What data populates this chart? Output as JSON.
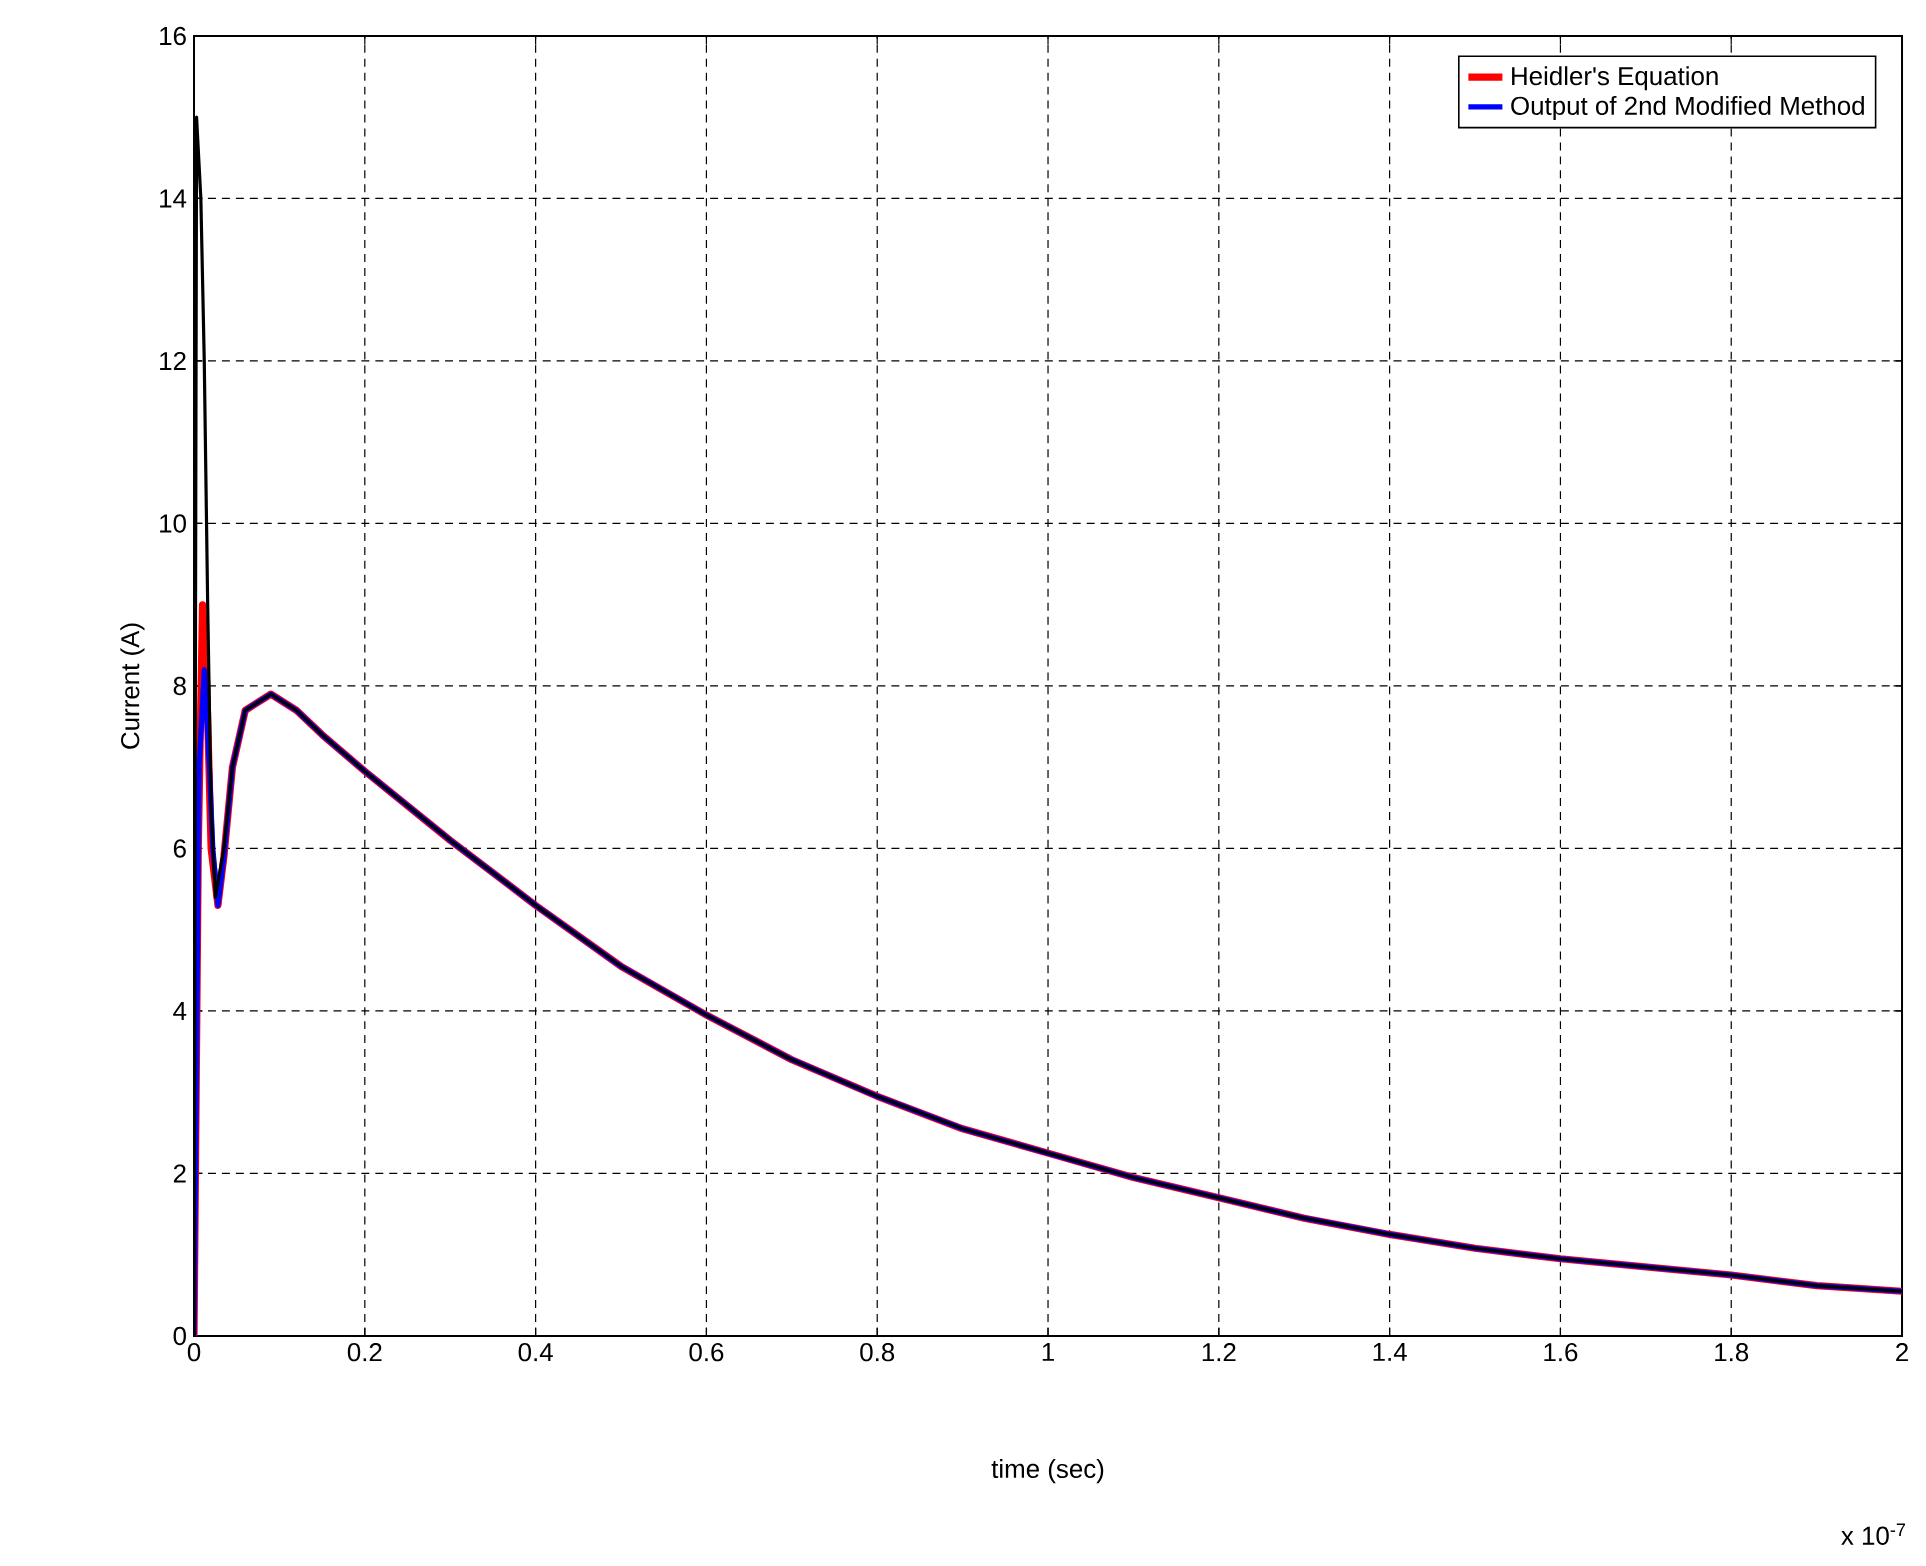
{
  "chart_data": {
    "type": "line",
    "xlabel": "time (sec)",
    "ylabel": "Current (A)",
    "xlim": [
      0,
      2
    ],
    "ylim": [
      0,
      16
    ],
    "xticks": [
      0,
      0.2,
      0.4,
      0.6,
      0.8,
      1,
      1.2,
      1.4,
      1.6,
      1.8,
      2
    ],
    "yticks": [
      0,
      2,
      4,
      6,
      8,
      10,
      12,
      14,
      16
    ],
    "grid": true,
    "legend": "top right",
    "line_style": "solid",
    "marker": "none",
    "annotations": [
      "x 10$^{-7}$"
    ],
    "series": [
      {
        "name": "Heidler's Equation",
        "color": "#ff0000",
        "x": [
          0,
          0.005,
          0.01,
          0.015,
          0.02,
          0.028,
          0.035,
          0.045,
          0.06,
          0.09,
          0.12,
          0.15,
          0.2,
          0.3,
          0.4,
          0.5,
          0.6,
          0.7,
          0.8,
          0.9,
          1.0,
          1.1,
          1.2,
          1.3,
          1.4,
          1.5,
          1.6,
          1.7,
          1.8,
          1.9,
          2.0
        ],
        "values": [
          0,
          6,
          9,
          8,
          6,
          5.3,
          5.9,
          7,
          7.7,
          7.9,
          7.7,
          7.4,
          6.95,
          6.1,
          5.3,
          4.55,
          3.95,
          3.4,
          2.95,
          2.55,
          2.25,
          1.95,
          1.7,
          1.45,
          1.25,
          1.08,
          0.95,
          0.85,
          0.75,
          0.62,
          0.55
        ]
      },
      {
        "name": "Output of 2nd Modified Method",
        "color": "#0000ff",
        "x": [
          0,
          0.006,
          0.012,
          0.018,
          0.022,
          0.028,
          0.035,
          0.045,
          0.06,
          0.09,
          0.12,
          0.15,
          0.2,
          0.3,
          0.4,
          0.5,
          0.6,
          0.7,
          0.8,
          0.9,
          1.0,
          1.1,
          1.2,
          1.3,
          1.4,
          1.5,
          1.6,
          1.7,
          1.8,
          1.9,
          2.0
        ],
        "values": [
          0,
          7,
          8.2,
          7,
          6,
          5.3,
          5.9,
          7,
          7.7,
          7.9,
          7.7,
          7.4,
          6.95,
          6.1,
          5.3,
          4.55,
          3.95,
          3.4,
          2.95,
          2.55,
          2.25,
          1.95,
          1.7,
          1.45,
          1.25,
          1.08,
          0.95,
          0.85,
          0.75,
          0.62,
          0.55
        ]
      },
      {
        "color": "#000000",
        "x": [
          0,
          0.003,
          0.008,
          0.012,
          0.016,
          0.02,
          0.025,
          0.035,
          0.045,
          0.06,
          0.09,
          0.12,
          0.15,
          0.2,
          0.3,
          0.4,
          0.5,
          0.6,
          0.7,
          0.8,
          0.9,
          1.0,
          1.1,
          1.2,
          1.3,
          1.4,
          1.5,
          1.6,
          1.7,
          1.8,
          1.9,
          2.0
        ],
        "values": [
          0,
          15,
          14,
          12,
          9,
          6.5,
          5.4,
          6,
          7,
          7.7,
          7.9,
          7.7,
          7.4,
          6.95,
          6.1,
          5.3,
          4.55,
          3.95,
          3.4,
          2.95,
          2.55,
          2.25,
          1.95,
          1.7,
          1.45,
          1.25,
          1.08,
          0.95,
          0.85,
          0.75,
          0.62,
          0.55
        ]
      }
    ]
  }
}
